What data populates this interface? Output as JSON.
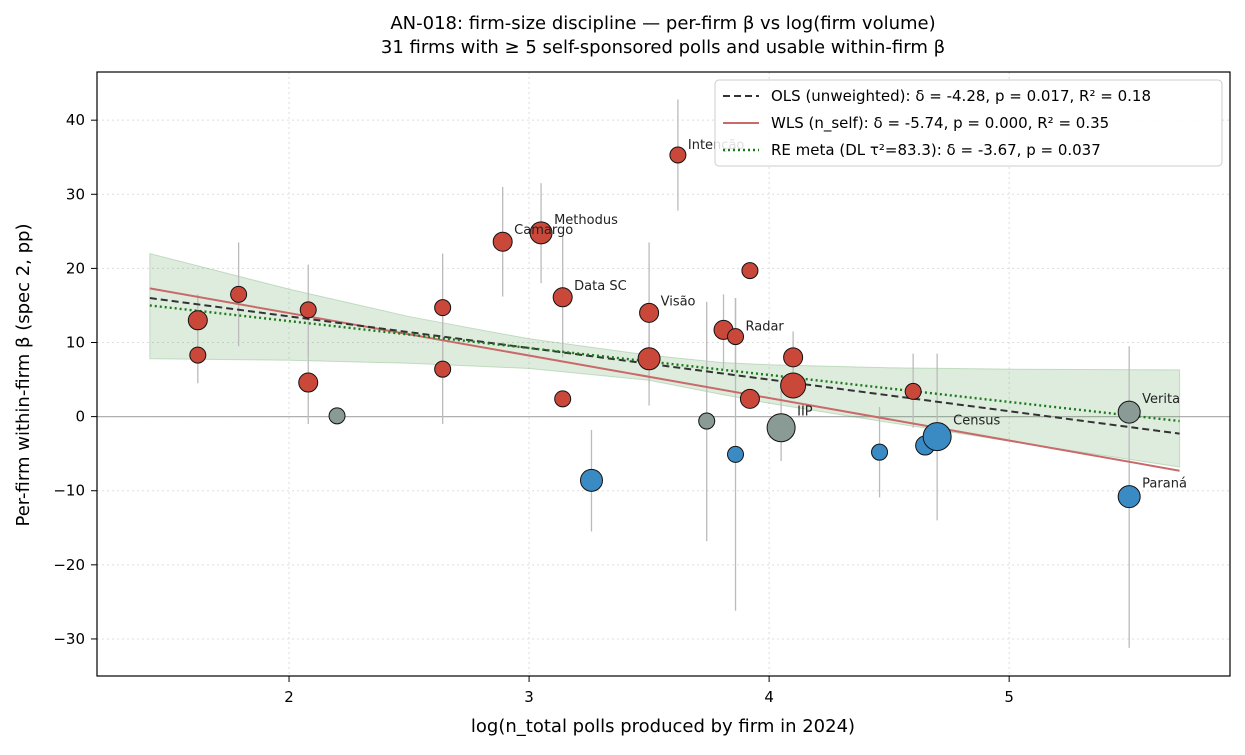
{
  "chart_data": {
    "type": "scatter",
    "title_line1": "AN-018: firm-size discipline — per-firm β vs log(firm volume)",
    "title_line2": "31 firms with ≥ 5 self-sponsored polls and usable within-firm β",
    "xlabel": "log(n_total polls produced by firm in 2024)",
    "ylabel": "Per-firm within-firm β (spec 2, pp)",
    "xlim": [
      1.2,
      5.92
    ],
    "ylim": [
      -35,
      46.5
    ],
    "xticks": [
      2,
      3,
      4,
      5
    ],
    "xtick_labels": [
      "2",
      "3",
      "4",
      "5"
    ],
    "yticks": [
      -30,
      -20,
      -10,
      0,
      10,
      20,
      30,
      40
    ],
    "ytick_labels": [
      "−30",
      "−20",
      "−10",
      "0",
      "10",
      "20",
      "30",
      "40"
    ],
    "grid": true,
    "legend_position": "top-right",
    "colors": {
      "positive": "#c9483a",
      "neutral": "#8a9a95",
      "negative": "#3a8ac4",
      "ols": "#333333",
      "wls": "#c96a6a",
      "re": "#1a7a1a",
      "band": "#5a9e5a",
      "errorbar": "#bbbbbb"
    },
    "legend": [
      {
        "key": "ols",
        "label": "OLS (unweighted): δ = -4.28, p = 0.017, R² = 0.18"
      },
      {
        "key": "wls",
        "label": "WLS (n_self): δ = -5.74, p = 0.000, R² = 0.35"
      },
      {
        "key": "re",
        "label": "RE meta (DL τ²=83.3): δ = -3.67, p = 0.037"
      }
    ],
    "fits": {
      "ols": {
        "x": [
          1.42,
          5.71
        ],
        "y": [
          16.0,
          -2.3
        ]
      },
      "wls": {
        "x": [
          1.42,
          5.71
        ],
        "y": [
          17.3,
          -7.3
        ]
      },
      "re": {
        "x": [
          1.42,
          5.71
        ],
        "y": [
          15.0,
          -0.6
        ]
      },
      "re_band": {
        "x": [
          1.42,
          2.0,
          2.5,
          3.0,
          3.5,
          3.8,
          4.0,
          4.5,
          5.0,
          5.71
        ],
        "upper": [
          22.0,
          17.2,
          13.5,
          10.5,
          8.3,
          7.3,
          7.0,
          6.6,
          6.4,
          6.3
        ],
        "lower": [
          7.8,
          7.6,
          7.2,
          6.5,
          4.9,
          3.0,
          1.8,
          -0.8,
          -3.3,
          -6.8
        ]
      }
    },
    "points": [
      {
        "x": 1.62,
        "y": 13.0,
        "ci": [
          9.5,
          16.5
        ],
        "n": 3,
        "cls": "positive",
        "label": ""
      },
      {
        "x": 1.62,
        "y": 8.3,
        "ci": [
          4.5,
          12.0
        ],
        "n": 2,
        "cls": "positive",
        "label": ""
      },
      {
        "x": 1.79,
        "y": 16.5,
        "ci": [
          9.5,
          23.5
        ],
        "n": 2,
        "cls": "positive",
        "label": ""
      },
      {
        "x": 2.08,
        "y": 14.4,
        "ci": [
          8.5,
          20.5
        ],
        "n": 2,
        "cls": "positive",
        "label": ""
      },
      {
        "x": 2.08,
        "y": 4.6,
        "ci": [
          -1.0,
          10.0
        ],
        "n": 3,
        "cls": "positive",
        "label": ""
      },
      {
        "x": 2.2,
        "y": 0.1,
        "ci": [
          0.1,
          0.1
        ],
        "n": 2,
        "cls": "neutral",
        "label": ""
      },
      {
        "x": 2.64,
        "y": 14.7,
        "ci": [
          7.5,
          22.0
        ],
        "n": 2,
        "cls": "positive",
        "label": ""
      },
      {
        "x": 2.64,
        "y": 6.4,
        "ci": [
          -1.0,
          14.0
        ],
        "n": 2,
        "cls": "positive",
        "label": ""
      },
      {
        "x": 2.89,
        "y": 23.6,
        "ci": [
          16.2,
          31.0
        ],
        "n": 3,
        "cls": "positive",
        "label": "Camargo"
      },
      {
        "x": 3.05,
        "y": 24.8,
        "ci": [
          18.0,
          31.5
        ],
        "n": 4,
        "cls": "positive",
        "label": "Methodus"
      },
      {
        "x": 3.14,
        "y": 16.1,
        "ci": [
          8.0,
          24.5
        ],
        "n": 3,
        "cls": "positive",
        "label": "Data SC"
      },
      {
        "x": 3.14,
        "y": 2.4,
        "ci": [
          2.4,
          2.4
        ],
        "n": 2,
        "cls": "positive",
        "label": ""
      },
      {
        "x": 3.26,
        "y": -8.6,
        "ci": [
          -15.5,
          -1.8
        ],
        "n": 4,
        "cls": "negative",
        "label": ""
      },
      {
        "x": 3.5,
        "y": 14.0,
        "ci": [
          4.5,
          23.5
        ],
        "n": 3,
        "cls": "positive",
        "label": "Visão"
      },
      {
        "x": 3.5,
        "y": 7.8,
        "ci": [
          1.5,
          14.0
        ],
        "n": 4,
        "cls": "positive",
        "label": ""
      },
      {
        "x": 3.62,
        "y": 35.3,
        "ci": [
          27.8,
          42.8
        ],
        "n": 2,
        "cls": "positive",
        "label": "Intenção"
      },
      {
        "x": 3.74,
        "y": -0.6,
        "ci": [
          -16.8,
          15.5
        ],
        "n": 2,
        "cls": "neutral",
        "label": ""
      },
      {
        "x": 3.81,
        "y": 11.7,
        "ci": [
          6.5,
          16.5
        ],
        "n": 3,
        "cls": "positive",
        "label": ""
      },
      {
        "x": 3.86,
        "y": 10.8,
        "ci": [
          5.0,
          16.0
        ],
        "n": 2,
        "cls": "positive",
        "label": "Radar"
      },
      {
        "x": 3.86,
        "y": -5.1,
        "ci": [
          -26.2,
          16.0
        ],
        "n": 2,
        "cls": "negative",
        "label": ""
      },
      {
        "x": 3.92,
        "y": 19.7,
        "ci": [
          19.7,
          19.7
        ],
        "n": 2,
        "cls": "positive",
        "label": ""
      },
      {
        "x": 3.92,
        "y": 2.4,
        "ci": [
          2.4,
          2.4
        ],
        "n": 3,
        "cls": "positive",
        "label": ""
      },
      {
        "x": 4.05,
        "y": -1.5,
        "ci": [
          -6.0,
          3.5
        ],
        "n": 6,
        "cls": "neutral",
        "label": "IIP"
      },
      {
        "x": 4.1,
        "y": 8.0,
        "ci": [
          4.5,
          11.5
        ],
        "n": 3,
        "cls": "positive",
        "label": ""
      },
      {
        "x": 4.1,
        "y": 4.2,
        "ci": [
          4.2,
          4.2
        ],
        "n": 5,
        "cls": "positive",
        "label": ""
      },
      {
        "x": 4.46,
        "y": -4.8,
        "ci": [
          -10.9,
          1.3
        ],
        "n": 2,
        "cls": "negative",
        "label": ""
      },
      {
        "x": 4.6,
        "y": 3.4,
        "ci": [
          -1.5,
          8.5
        ],
        "n": 2,
        "cls": "positive",
        "label": ""
      },
      {
        "x": 4.65,
        "y": -3.9,
        "ci": [
          -3.9,
          -3.9
        ],
        "n": 3,
        "cls": "negative",
        "label": ""
      },
      {
        "x": 4.7,
        "y": -2.7,
        "ci": [
          -14.0,
          8.5
        ],
        "n": 6,
        "cls": "negative",
        "label": "Census"
      },
      {
        "x": 5.5,
        "y": 0.6,
        "ci": [
          0.6,
          0.6
        ],
        "n": 4,
        "cls": "neutral",
        "label": "Verita"
      },
      {
        "x": 5.5,
        "y": -10.8,
        "ci": [
          -31.2,
          9.5
        ],
        "n": 4,
        "cls": "negative",
        "label": "Paraná"
      }
    ]
  }
}
